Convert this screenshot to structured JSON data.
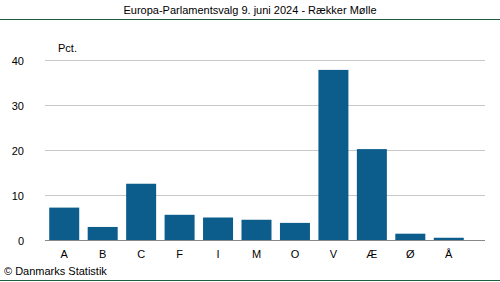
{
  "chart_data": {
    "type": "bar",
    "title": "Europa-Parlamentsvalg 9. juni 2024 - Rækker Mølle",
    "y_label": "Pct.",
    "annotation": "© Danmarks Statistik",
    "categories": [
      "A",
      "B",
      "C",
      "F",
      "I",
      "M",
      "O",
      "V",
      "Æ",
      "Ø",
      "Å"
    ],
    "values": [
      7.2,
      2.9,
      12.5,
      5.6,
      5.0,
      4.5,
      3.8,
      37.8,
      20.2,
      1.4,
      0.5
    ],
    "color": "#0c5d8c",
    "ylim": [
      0,
      40
    ],
    "yticks": [
      0,
      10,
      20,
      30,
      40
    ],
    "grid": true
  }
}
